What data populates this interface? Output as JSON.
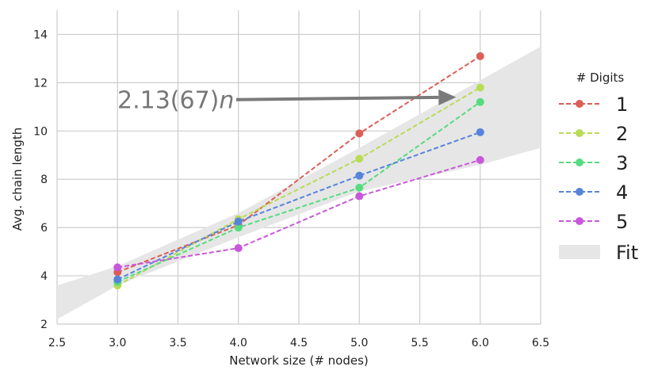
{
  "chart_data": {
    "type": "line",
    "xlabel": "Network size (# nodes)",
    "ylabel": "Avg. chain length",
    "xlim": [
      2.5,
      6.5
    ],
    "ylim": [
      2,
      15
    ],
    "xticks": [
      "2.5",
      "3.0",
      "3.5",
      "4.0",
      "4.5",
      "5.0",
      "5.5",
      "6.0",
      "6.5"
    ],
    "yticks": [
      "2",
      "4",
      "6",
      "8",
      "10",
      "12",
      "14"
    ],
    "grid": true,
    "legend_title": "# Digits",
    "legend_position": "right",
    "x": [
      3,
      4,
      5,
      6
    ],
    "series": [
      {
        "name": "1",
        "values": [
          4.15,
          6.1,
          9.9,
          13.1
        ],
        "color": "#db5f57"
      },
      {
        "name": "2",
        "values": [
          3.6,
          6.35,
          8.85,
          11.8
        ],
        "color": "#b9db57"
      },
      {
        "name": "3",
        "values": [
          3.75,
          6.0,
          7.65,
          11.2
        ],
        "color": "#57db80"
      },
      {
        "name": "4",
        "values": [
          3.85,
          6.25,
          8.15,
          9.95
        ],
        "color": "#5784db"
      },
      {
        "name": "5",
        "values": [
          4.35,
          5.15,
          7.3,
          8.8
        ],
        "color": "#c957db"
      }
    ],
    "fit": {
      "label": "Fit",
      "slope": 2.13,
      "band_upper": [
        [
          2.5,
          3.6
        ],
        [
          3.0,
          4.4
        ],
        [
          4.0,
          6.6
        ],
        [
          5.0,
          9.3
        ],
        [
          6.0,
          12.1
        ],
        [
          6.5,
          13.5
        ]
      ],
      "band_lower": [
        [
          2.5,
          2.2
        ],
        [
          3.0,
          3.6
        ],
        [
          4.0,
          5.6
        ],
        [
          5.0,
          7.5
        ],
        [
          6.0,
          8.6
        ],
        [
          6.5,
          9.3
        ]
      ],
      "color": "#e6e6e6"
    },
    "annotation": {
      "text_main": "2.13(67)",
      "text_var": "n",
      "arrow_color": "#7a7a7a",
      "from": [
        4.0,
        11.3
      ],
      "to": [
        5.8,
        11.4
      ]
    }
  }
}
